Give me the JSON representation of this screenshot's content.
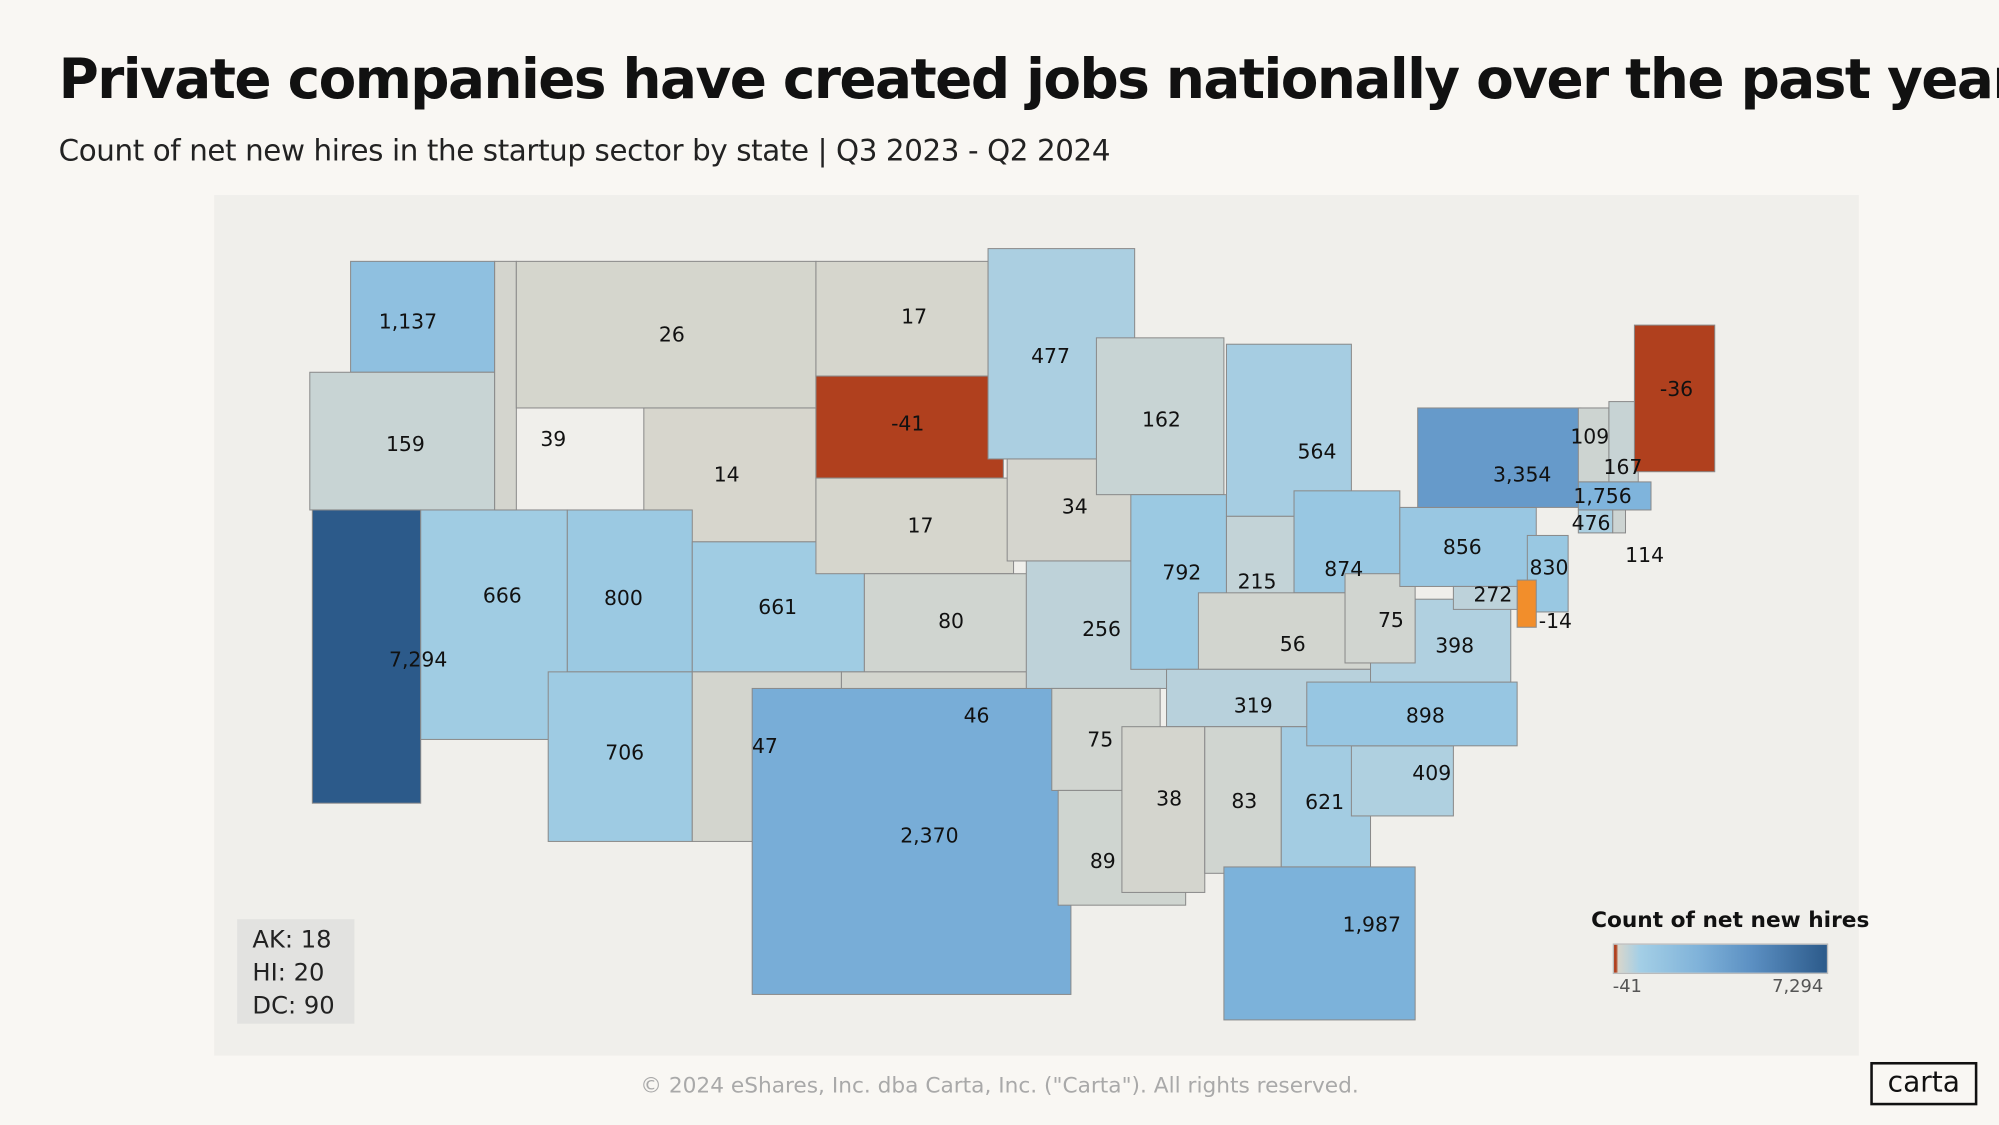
{
  "title": "Private companies have created jobs nationally over the past year",
  "subtitle": "Count of net new hires in the startup sector by state | Q3 2023 - Q2 2024",
  "extra_states": [
    "AK: 18",
    "HI: 20",
    "DC: 90"
  ],
  "legend": {
    "title": "Count of net new hires",
    "min": "-41",
    "max": "7,294"
  },
  "copyright": "© 2024 eShares, Inc. dba Carta, Inc. (\"Carta\"). All rights reserved.",
  "logo": "carta",
  "colors": {
    "negative_strong": "#b0401e",
    "negative_weak": "#f28e2b",
    "neutral": "#d8d6cc",
    "max": "#2c5a8a",
    "background": "#f9f7f3"
  },
  "chart_data": {
    "type": "choropleth",
    "title": "Private companies have created jobs nationally over the past year",
    "subtitle": "Count of net new hires in the startup sector by state | Q3 2023 - Q2 2024",
    "color_range": [
      -41,
      7294
    ],
    "states": {
      "WA": 1137,
      "OR": 159,
      "CA": 7294,
      "NV": 666,
      "ID": 39,
      "MT": 26,
      "WY": 14,
      "UT": 800,
      "CO": 661,
      "AZ": 706,
      "NM": 47,
      "ND": 17,
      "SD": -41,
      "NE": 17,
      "KS": 80,
      "OK": 46,
      "TX": 2370,
      "MN": 477,
      "IA": 34,
      "MO": 256,
      "AR": 75,
      "LA": 89,
      "WI": 162,
      "IL": 792,
      "MI": 564,
      "IN": 215,
      "OH": 874,
      "KY": 56,
      "TN": 319,
      "MS": 38,
      "AL": 83,
      "GA": 621,
      "FL": 1987,
      "SC": 409,
      "NC": 898,
      "VA": 398,
      "WV": 75,
      "PA": 856,
      "NY": 3354,
      "NJ": 830,
      "DE": -14,
      "MD": 272,
      "VT": 109,
      "NH": 167,
      "ME": -36,
      "MA": 1756,
      "CT": 476,
      "RI": 114,
      "AK": 18,
      "HI": 20,
      "DC": 90
    },
    "labels": {
      "WA": "1,137",
      "OR": "159",
      "CA": "7,294",
      "NV": "666",
      "ID": "39",
      "MT": "26",
      "WY": "14",
      "UT": "800",
      "CO": "661",
      "AZ": "706",
      "NM": "47",
      "ND": "17",
      "SD": "-41",
      "NE": "17",
      "KS": "80",
      "OK": "46",
      "TX": "2,370",
      "MN": "477",
      "IA": "34",
      "MO": "256",
      "AR": "75",
      "LA": "89",
      "WI": "162",
      "IL": "792",
      "MI": "564",
      "IN": "215",
      "OH": "874",
      "KY": "56",
      "TN": "319",
      "MS": "38",
      "AL": "83",
      "GA": "621",
      "FL": "1,987",
      "SC": "409",
      "NC": "898",
      "VA": "398",
      "WV": "75",
      "PA": "856",
      "NY": "3,354",
      "NJ": "830",
      "DE": "-14",
      "MD": "272",
      "VT": "109",
      "NH": "167",
      "ME": "-36",
      "MA": "1,756",
      "CT": "476",
      "RI": "114"
    }
  }
}
